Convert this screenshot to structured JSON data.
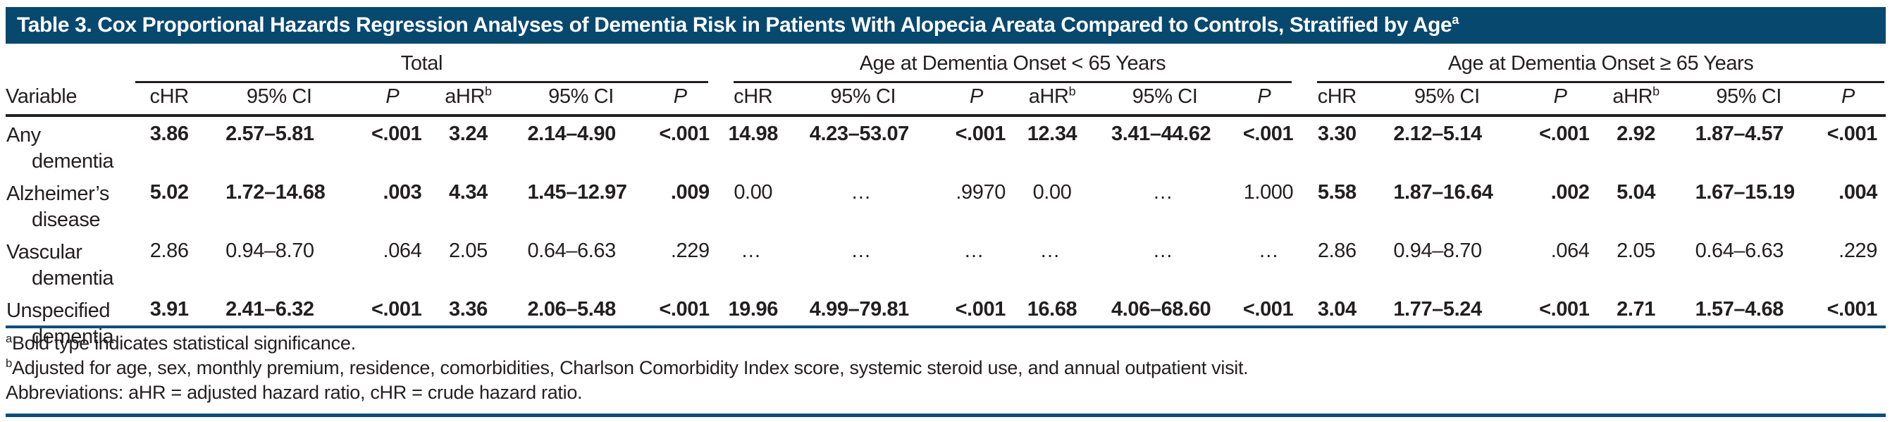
{
  "title": {
    "text": "Table 3. Cox Proportional Hazards Regression Analyses of Dementia Risk in Patients With Alopecia Areata Compared to Controls, Stratified by Age",
    "superscript": "a"
  },
  "table": {
    "variable_header": "Variable",
    "groups": [
      {
        "label": "Total"
      },
      {
        "label": "Age at Dementia Onset < 65 Years"
      },
      {
        "label": "Age at Dementia Onset ≥ 65 Years"
      }
    ],
    "subcolumns": [
      {
        "label": "cHR",
        "italic": false,
        "sup": ""
      },
      {
        "label": "95% CI",
        "italic": false,
        "sup": ""
      },
      {
        "label": "P",
        "italic": true,
        "sup": ""
      },
      {
        "label": "aHR",
        "italic": false,
        "sup": "b"
      },
      {
        "label": "95% CI",
        "italic": false,
        "sup": ""
      },
      {
        "label": "P",
        "italic": true,
        "sup": ""
      }
    ],
    "rows": [
      {
        "variable_lines": [
          "Any",
          "dementia"
        ],
        "groups": [
          {
            "bold": true,
            "values": [
              "3.86",
              "2.57–5.81",
              "<.001",
              "3.24",
              "2.14–4.90",
              "<.001"
            ]
          },
          {
            "bold": true,
            "values": [
              "14.98",
              "4.23–53.07",
              "<.001",
              "12.34",
              "3.41–44.62",
              "<.001"
            ]
          },
          {
            "bold": true,
            "values": [
              "3.30",
              "2.12–5.14",
              "<.001",
              "2.92",
              "1.87–4.57",
              "<.001"
            ]
          }
        ]
      },
      {
        "variable_lines": [
          "Alzheimer’s",
          "disease"
        ],
        "groups": [
          {
            "bold": true,
            "values": [
              "5.02",
              "1.72–14.68",
              ".003",
              "4.34",
              "1.45–12.97",
              ".009"
            ]
          },
          {
            "bold": false,
            "values": [
              "0.00",
              "…",
              ".9970",
              "0.00",
              "…",
              "1.000"
            ]
          },
          {
            "bold": true,
            "values": [
              "5.58",
              "1.87–16.64",
              ".002",
              "5.04",
              "1.67–15.19",
              ".004"
            ]
          }
        ]
      },
      {
        "variable_lines": [
          "Vascular",
          "dementia"
        ],
        "groups": [
          {
            "bold": false,
            "values": [
              "2.86",
              "0.94–8.70",
              ".064",
              "2.05",
              "0.64–6.63",
              ".229"
            ]
          },
          {
            "bold": false,
            "values": [
              "…",
              "…",
              "…",
              "…",
              "…",
              "…"
            ]
          },
          {
            "bold": false,
            "values": [
              "2.86",
              "0.94–8.70",
              ".064",
              "2.05",
              "0.64–6.63",
              ".229"
            ]
          }
        ]
      },
      {
        "variable_lines": [
          "Unspecified",
          "dementia"
        ],
        "groups": [
          {
            "bold": true,
            "values": [
              "3.91",
              "2.41–6.32",
              "<.001",
              "3.36",
              "2.06–5.48",
              "<.001"
            ]
          },
          {
            "bold": true,
            "values": [
              "19.96",
              "4.99–79.81",
              "<.001",
              "16.68",
              "4.06–68.60",
              "<.001"
            ]
          },
          {
            "bold": true,
            "values": [
              "3.04",
              "1.77–5.24",
              "<.001",
              "2.71",
              "1.57–4.68",
              "<.001"
            ]
          }
        ]
      }
    ]
  },
  "footnotes": [
    {
      "marker": "a",
      "text": "Bold type indicates statistical significance."
    },
    {
      "marker": "b",
      "text": "Adjusted for age, sex, monthly premium, residence, comorbidities, Charlson Comorbidity Index score, systemic steroid use, and annual outpatient visit."
    },
    {
      "marker": "",
      "text": "Abbreviations: aHR = adjusted hazard ratio, cHR = crude hazard ratio."
    }
  ],
  "colors": {
    "header_bar": "#07486F",
    "rule_blue": "#0B4E7C",
    "rule_black": "#231F20",
    "text": "#231F20"
  }
}
